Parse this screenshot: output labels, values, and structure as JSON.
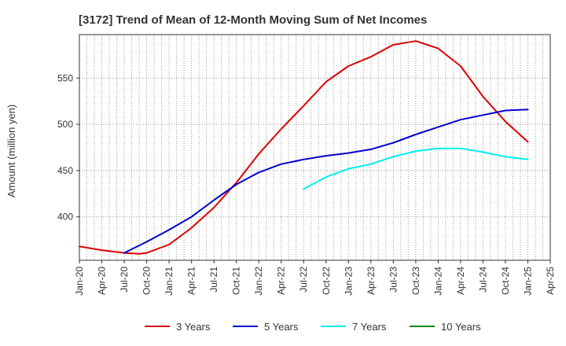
{
  "chart_data": {
    "type": "line",
    "title": "[3172]  Trend of Mean of 12-Month Moving Sum of Net Incomes",
    "xlabel": "",
    "ylabel": "Amount (million yen)",
    "ylim": [
      353,
      597
    ],
    "yticks": [
      400,
      450,
      500,
      550
    ],
    "xticks": [
      "Jan-20",
      "Apr-20",
      "Jul-20",
      "Oct-20",
      "Jan-21",
      "Apr-21",
      "Jul-21",
      "Oct-21",
      "Jan-22",
      "Apr-22",
      "Jul-22",
      "Oct-22",
      "Jan-23",
      "Apr-23",
      "Jul-23",
      "Oct-23",
      "Jan-24",
      "Apr-24",
      "Jul-24",
      "Oct-24",
      "Jan-25",
      "Apr-25"
    ],
    "grid": true,
    "legend_position": "bottom",
    "series": [
      {
        "name": "3 Years",
        "color": "#dd0000",
        "x": [
          "Jan-20",
          "Apr-20",
          "Jul-20",
          "Sep-20",
          "Oct-20",
          "Jan-21",
          "Apr-21",
          "Jul-21",
          "Oct-21",
          "Jan-22",
          "Apr-22",
          "Jul-22",
          "Oct-22",
          "Jan-23",
          "Apr-23",
          "Jul-23",
          "Oct-23",
          "Jan-24",
          "Apr-24",
          "Jul-24",
          "Oct-24",
          "Jan-25"
        ],
        "values": [
          368,
          364,
          361,
          360,
          361,
          370,
          388,
          410,
          437,
          468,
          495,
          520,
          546,
          563,
          573,
          586,
          590,
          582,
          563,
          530,
          503,
          481
        ]
      },
      {
        "name": "5 Years",
        "color": "#0000cc",
        "x": [
          "Jul-20",
          "Oct-20",
          "Jan-21",
          "Apr-21",
          "Jul-21",
          "Oct-21",
          "Jan-22",
          "Apr-22",
          "Jul-22",
          "Oct-22",
          "Jan-23",
          "Apr-23",
          "Jul-23",
          "Oct-23",
          "Jan-24",
          "Apr-24",
          "Jul-24",
          "Oct-24",
          "Jan-25"
        ],
        "values": [
          361,
          373,
          386,
          400,
          418,
          435,
          448,
          457,
          462,
          466,
          469,
          473,
          480,
          489,
          497,
          505,
          510,
          515,
          516
        ]
      },
      {
        "name": "7 Years",
        "color": "#00eeee",
        "x": [
          "Jul-22",
          "Oct-22",
          "Jan-23",
          "Apr-23",
          "Jul-23",
          "Oct-23",
          "Jan-24",
          "Apr-24",
          "Jul-24",
          "Oct-24",
          "Jan-25"
        ],
        "values": [
          430,
          443,
          452,
          457,
          465,
          471,
          474,
          474,
          470,
          465,
          462
        ]
      },
      {
        "name": "10 Years",
        "color": "#008800",
        "x": [],
        "values": []
      }
    ]
  }
}
